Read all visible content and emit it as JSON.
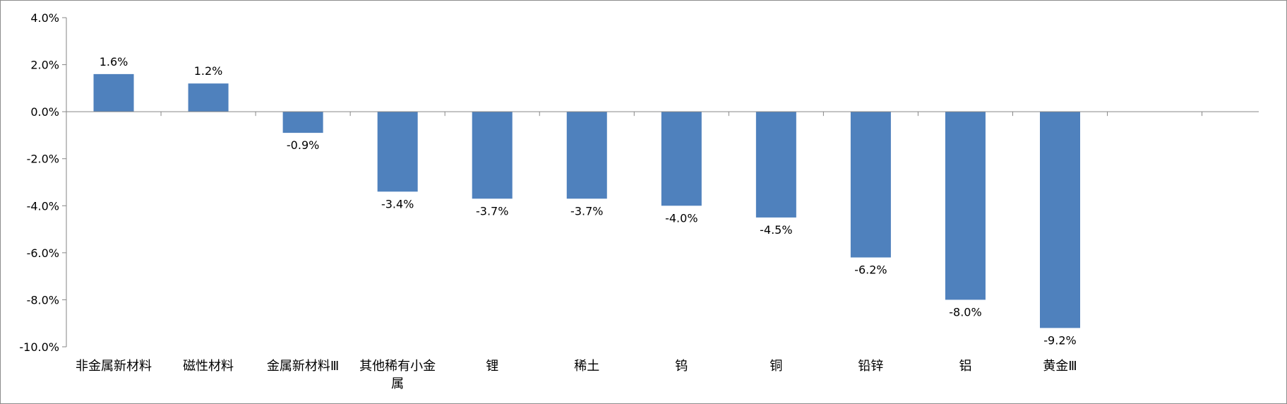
{
  "chart_data": {
    "type": "bar",
    "title": "",
    "xlabel": "",
    "ylabel": "",
    "ylim": [
      -10.0,
      4.0
    ],
    "yticks": [
      4.0,
      2.0,
      0.0,
      -2.0,
      -4.0,
      -6.0,
      -8.0,
      -10.0
    ],
    "ytick_labels": [
      "4.0%",
      "2.0%",
      "0.0%",
      "-2.0%",
      "-4.0%",
      "-6.0%",
      "-8.0%",
      "-10.0%"
    ],
    "grid": false,
    "legend": "none",
    "bar_color": "#4F81BD",
    "categories": [
      [
        "非金属新材料"
      ],
      [
        "磁性材料"
      ],
      [
        "金属新材料Ⅲ"
      ],
      [
        "其他稀有小金",
        "属"
      ],
      [
        "锂"
      ],
      [
        "稀土"
      ],
      [
        "钨"
      ],
      [
        "铜"
      ],
      [
        "铅锌"
      ],
      [
        "铝"
      ],
      [
        "黄金Ⅲ"
      ]
    ],
    "values": [
      1.6,
      1.2,
      -0.9,
      -3.4,
      -3.7,
      -3.7,
      -4.0,
      -4.5,
      -6.2,
      -8.0,
      -9.2
    ],
    "data_labels": [
      "1.6%",
      "1.2%",
      "-0.9%",
      "-3.4%",
      "-3.7%",
      "-3.7%",
      "-4.0%",
      "-4.5%",
      "-6.2%",
      "-8.0%",
      "-9.2%"
    ]
  }
}
